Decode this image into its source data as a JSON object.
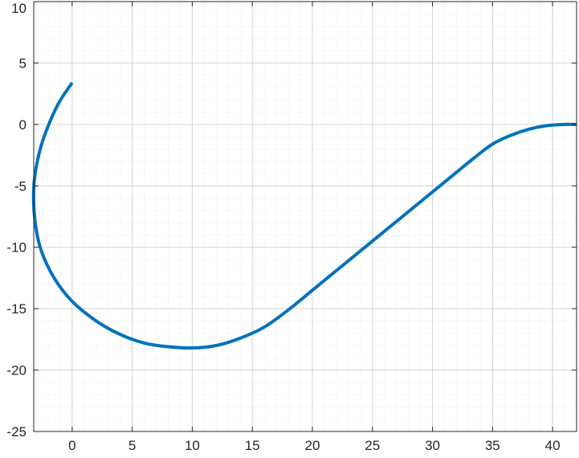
{
  "chart_data": {
    "type": "line",
    "title": "",
    "xlabel": "",
    "ylabel": "",
    "xlim": [
      -3.2,
      42
    ],
    "ylim": [
      -25,
      10
    ],
    "xticks": [
      0,
      5,
      10,
      15,
      20,
      25,
      30,
      35,
      40
    ],
    "yticks": [
      -25,
      -20,
      -15,
      -10,
      -5,
      0,
      5,
      10
    ],
    "xtick_labels": [
      "0",
      "5",
      "10",
      "15",
      "20",
      "25",
      "30",
      "35",
      "40"
    ],
    "ytick_labels": [
      "-25",
      "-20",
      "-15",
      "-10",
      "-5",
      "0",
      "5",
      "10"
    ],
    "grid": true,
    "minor_grid": true,
    "box": true,
    "series": [
      {
        "color": "#0072bd",
        "x": [
          0,
          -1.2,
          -2.3,
          -2.9,
          -3.2,
          -3.1,
          -2.6,
          -1.5,
          0,
          2,
          4,
          6,
          8,
          10,
          12,
          14,
          16,
          18,
          20,
          22,
          24,
          26,
          28,
          30,
          32,
          33.5,
          35,
          36.5,
          38,
          39.5,
          41,
          42
        ],
        "y": [
          3.4,
          1.6,
          -0.9,
          -3.0,
          -5.2,
          -7.8,
          -10.2,
          -12.5,
          -14.4,
          -16.0,
          -17.1,
          -17.8,
          -18.1,
          -18.2,
          -18.0,
          -17.4,
          -16.5,
          -15.1,
          -13.5,
          -11.9,
          -10.3,
          -8.7,
          -7.1,
          -5.5,
          -3.9,
          -2.7,
          -1.6,
          -0.9,
          -0.4,
          -0.1,
          0.0,
          0.0
        ]
      }
    ]
  }
}
